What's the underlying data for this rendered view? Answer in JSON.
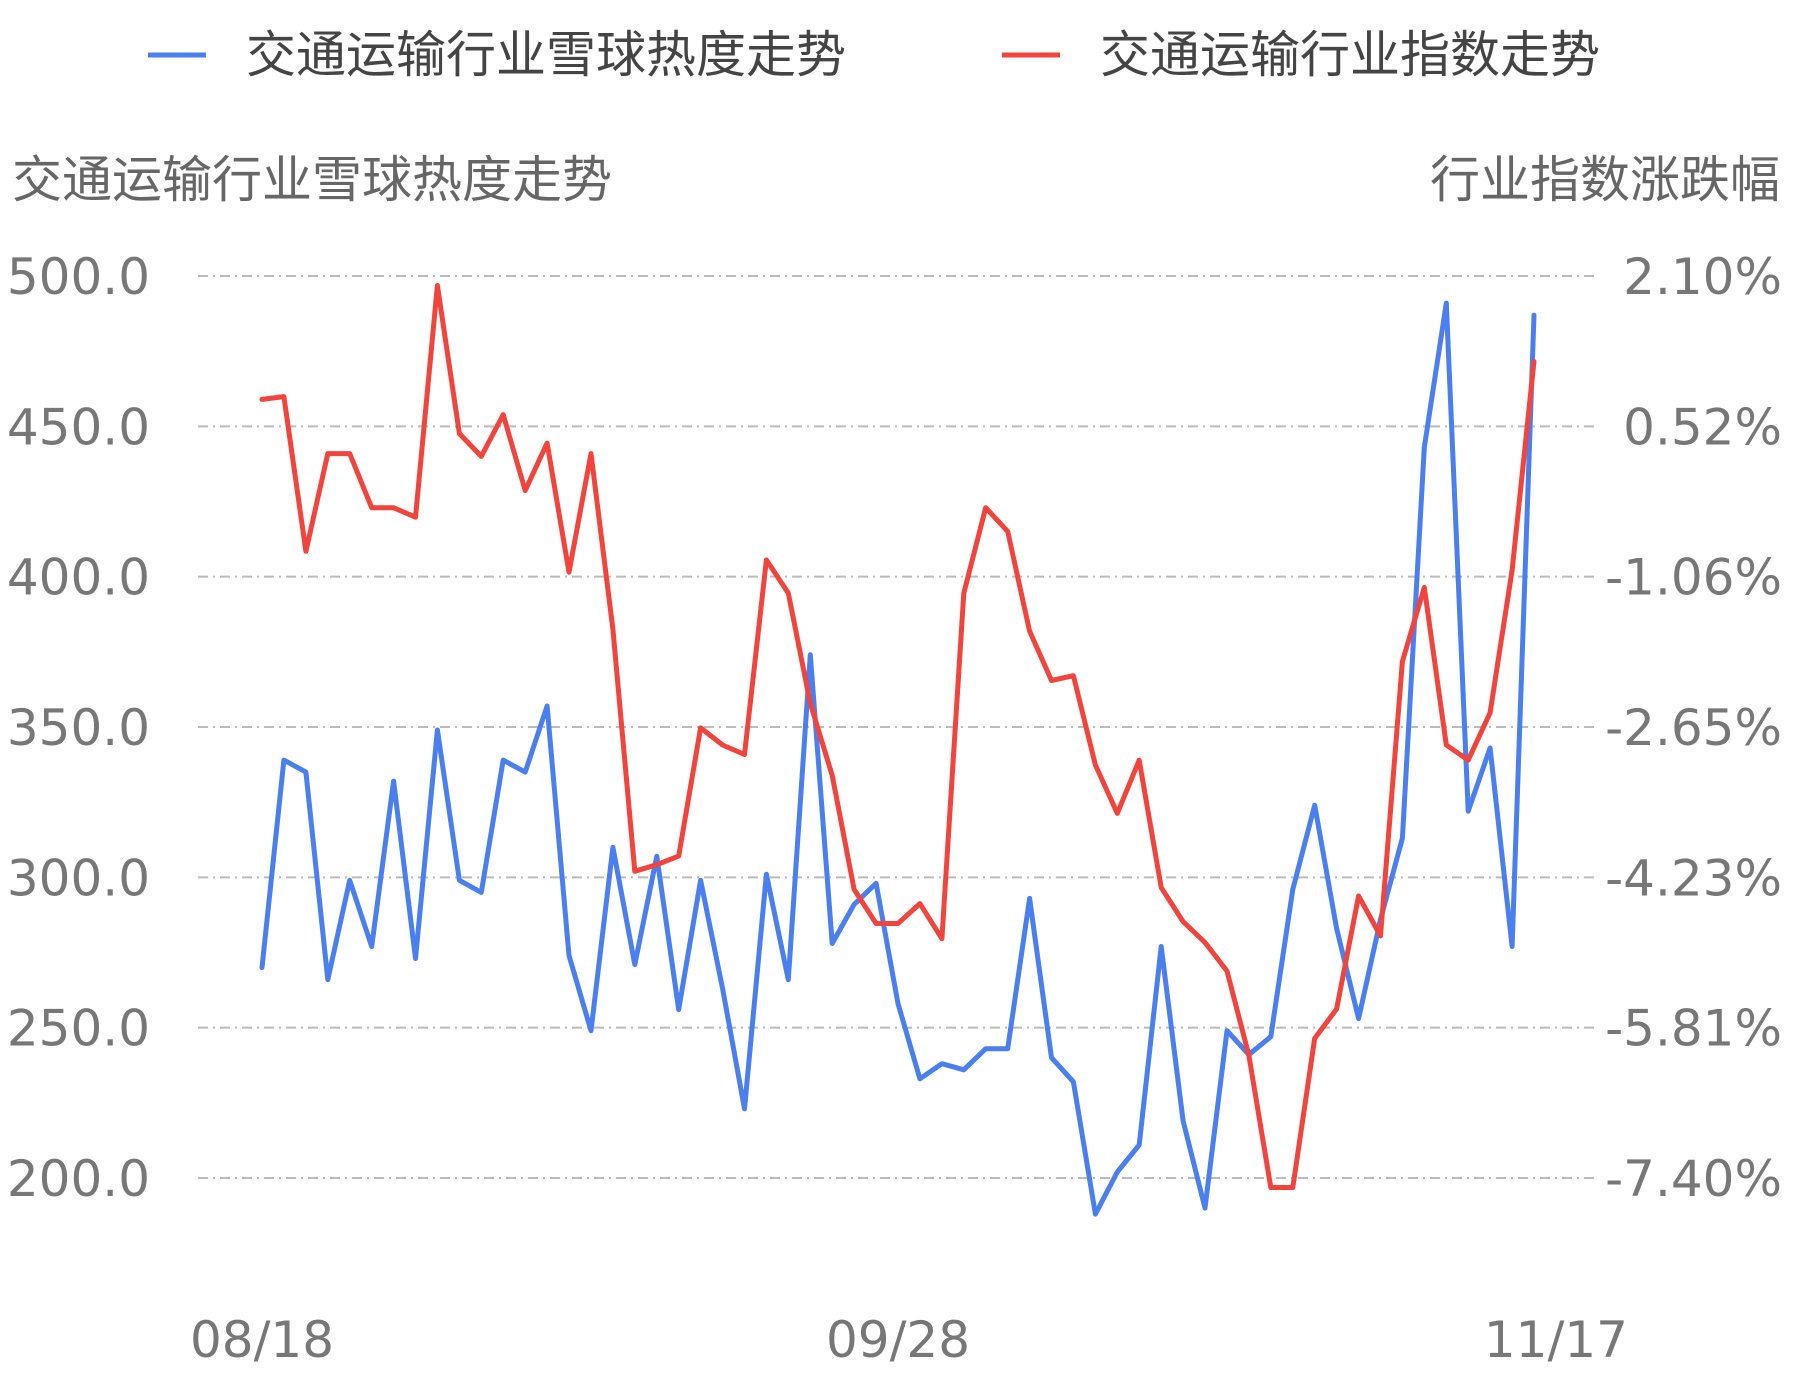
{
  "chart_data": {
    "type": "line",
    "legend": [
      "交通运输行业雪球热度走势",
      "交通运输行业指数走势"
    ],
    "legend_position": "top",
    "left_axis": {
      "title": "交通运输行业雪球热度走势",
      "ticks": [
        "500.0",
        "450.0",
        "400.0",
        "350.0",
        "300.0",
        "250.0",
        "200.0"
      ],
      "range": [
        200,
        500
      ]
    },
    "right_axis": {
      "title": "行业指数涨跌幅",
      "ticks": [
        "2.10%",
        "0.52%",
        "-1.06%",
        "-2.65%",
        "-4.23%",
        "-5.81%",
        "-7.40%"
      ],
      "range": [
        -7.4,
        2.1
      ]
    },
    "x_ticks": [
      {
        "label": "08/18",
        "index": 0
      },
      {
        "label": "09/28",
        "index": 29
      },
      {
        "label": "11/17",
        "index": 59
      }
    ],
    "grid": "horizontal-dashed",
    "series": [
      {
        "name": "交通运输行业雪球热度走势",
        "axis": "left",
        "color": "#4a7ff0",
        "values": [
          270,
          339,
          335,
          266,
          299,
          277,
          332,
          273,
          349,
          299,
          295,
          339,
          335,
          357,
          274,
          249,
          310,
          271,
          307,
          256,
          299,
          263,
          223,
          301,
          266,
          374,
          278,
          291,
          298,
          258,
          233,
          238,
          236,
          243,
          243,
          293,
          240,
          232,
          188,
          202,
          211,
          277,
          219,
          190,
          249,
          241,
          247,
          296,
          324,
          283,
          253,
          286,
          313,
          443,
          491,
          322,
          343,
          277,
          487
        ]
      },
      {
        "name": "交通运输行业指数走势",
        "axis": "right",
        "color": "#f2443d",
        "values": [
          0.8,
          0.83,
          -0.8,
          0.23,
          0.23,
          -0.34,
          -0.34,
          -0.44,
          2.0,
          0.44,
          0.2,
          0.64,
          -0.16,
          0.34,
          -1.02,
          0.23,
          -1.62,
          -4.17,
          -4.1,
          -4.01,
          -2.66,
          -2.84,
          -2.94,
          -0.89,
          -1.24,
          -2.4,
          -3.16,
          -4.36,
          -4.72,
          -4.72,
          -4.51,
          -4.88,
          -1.24,
          -0.34,
          -0.59,
          -1.64,
          -2.16,
          -2.11,
          -3.05,
          -3.56,
          -3.0,
          -4.34,
          -4.7,
          -4.92,
          -5.22,
          -6.11,
          -7.5,
          -7.5,
          -5.93,
          -5.62,
          -4.43,
          -4.85,
          -1.96,
          -1.18,
          -2.84,
          -3.0,
          -2.5,
          -1.0,
          1.2
        ]
      }
    ]
  }
}
